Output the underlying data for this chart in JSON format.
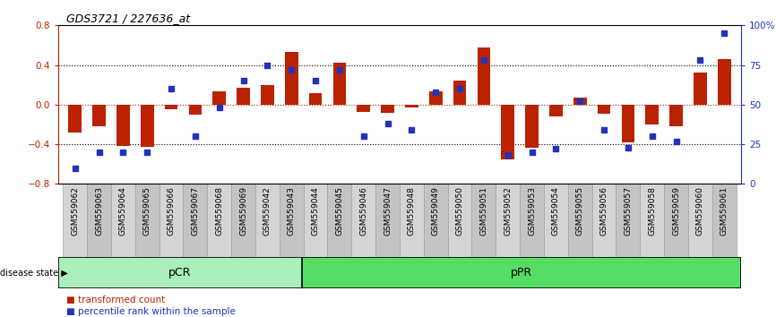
{
  "title": "GDS3721 / 227636_at",
  "samples": [
    "GSM559062",
    "GSM559063",
    "GSM559064",
    "GSM559065",
    "GSM559066",
    "GSM559067",
    "GSM559068",
    "GSM559069",
    "GSM559042",
    "GSM559043",
    "GSM559044",
    "GSM559045",
    "GSM559046",
    "GSM559047",
    "GSM559048",
    "GSM559049",
    "GSM559050",
    "GSM559051",
    "GSM559052",
    "GSM559053",
    "GSM559054",
    "GSM559055",
    "GSM559056",
    "GSM559057",
    "GSM559058",
    "GSM559059",
    "GSM559060",
    "GSM559061"
  ],
  "transformed_count": [
    -0.28,
    -0.22,
    -0.42,
    -0.43,
    -0.05,
    -0.1,
    0.13,
    0.17,
    0.2,
    0.53,
    0.12,
    0.42,
    -0.07,
    -0.08,
    -0.03,
    0.13,
    0.24,
    0.58,
    -0.55,
    -0.44,
    -0.12,
    0.07,
    -0.09,
    -0.38,
    -0.2,
    -0.22,
    0.32,
    0.46
  ],
  "percentile_rank": [
    10,
    20,
    20,
    20,
    60,
    30,
    48,
    65,
    75,
    72,
    65,
    72,
    30,
    38,
    34,
    58,
    60,
    78,
    18,
    20,
    22,
    52,
    34,
    23,
    30,
    27,
    78,
    95
  ],
  "pCR_count": 10,
  "pPR_count": 18,
  "ylim": [
    -0.8,
    0.8
  ],
  "yticks_left": [
    -0.8,
    -0.4,
    0.0,
    0.4,
    0.8
  ],
  "yticks_right": [
    0,
    25,
    50,
    75,
    100
  ],
  "bar_color": "#bb2200",
  "dot_color": "#2233bb",
  "pCR_color": "#aaeebb",
  "pPR_color": "#55dd66",
  "label_bg_color": "#cccccc",
  "legend_red": "transformed count",
  "legend_blue": "percentile rank within the sample",
  "disease_state_label": "disease state",
  "pCR_label": "pCR",
  "pPR_label": "pPR"
}
